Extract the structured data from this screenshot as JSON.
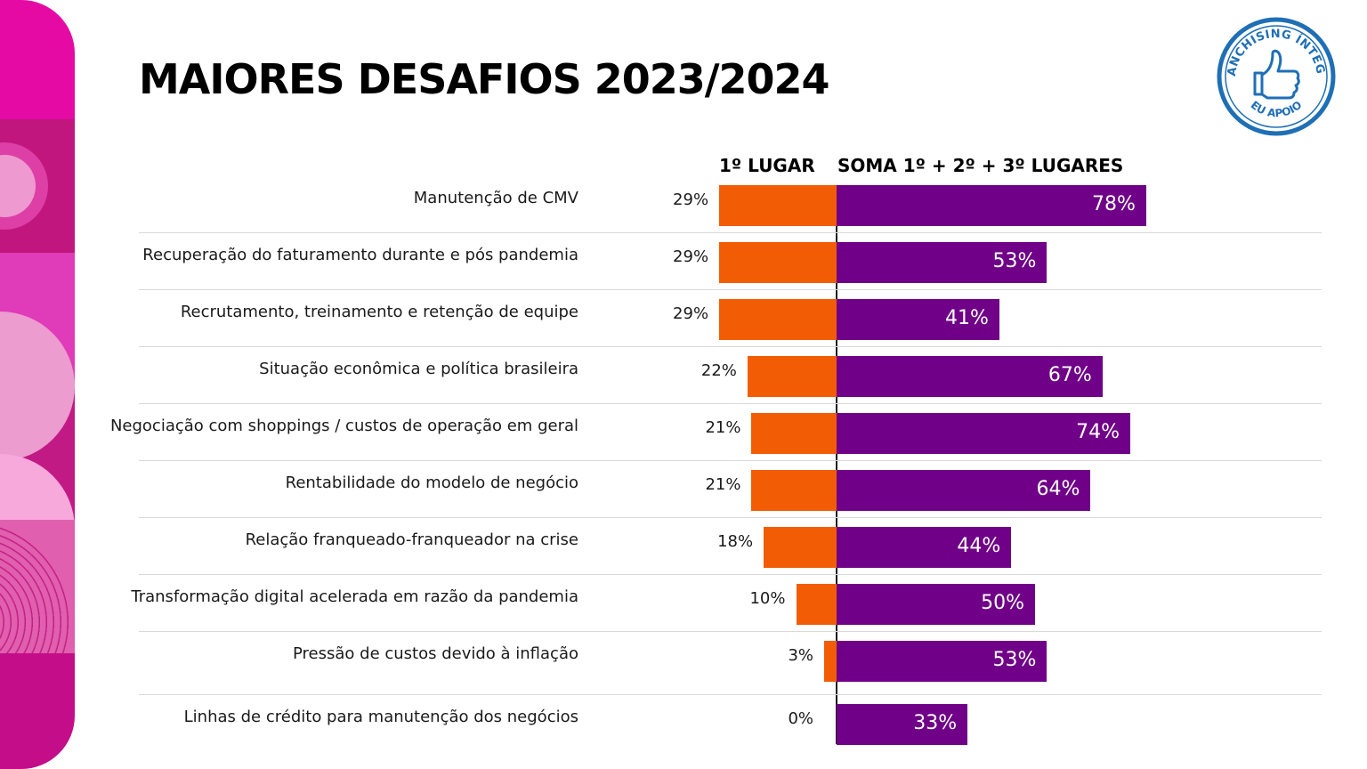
{
  "title": "MAIORES DESAFIOS 2023/2024",
  "seal": {
    "text_top": "FRANCHISING ÍNTEGRO",
    "text_bottom": "EU APOIO",
    "icon": "thumbs-up-icon",
    "color": "#1f6fb5"
  },
  "colors": {
    "first_place": "#f25c05",
    "sum_places": "#6f0087",
    "accent_pink": "#e0119b"
  },
  "chart_data": {
    "type": "bar",
    "orientation": "horizontal-diverging",
    "series": [
      {
        "name": "1º LUGAR",
        "values": [
          29,
          29,
          29,
          22,
          21,
          21,
          18,
          10,
          3,
          0
        ]
      },
      {
        "name": "SOMA 1º + 2º + 3º LUGARES",
        "values": [
          78,
          53,
          41,
          67,
          74,
          64,
          44,
          50,
          53,
          33
        ]
      }
    ],
    "categories": [
      "Manutenção de CMV",
      "Recuperação do faturamento durante e pós pandemia",
      "Recrutamento, treinamento e retenção de equipe",
      "Situação econômica e política brasileira",
      "Negociação com shoppings / custos de operação em geral",
      "Rentabilidade do modelo de negócio",
      "Relação franqueado-franqueador na crise",
      "Transformação digital acelerada em razão da pandemia",
      "Pressão de custos devido à inflação",
      "Linhas de crédito para manutenção dos negócios"
    ],
    "labels_first": [
      "29%",
      "29%",
      "29%",
      "22%",
      "21%",
      "21%",
      "18%",
      "10%",
      "3%",
      "0%"
    ],
    "labels_sum": [
      "78%",
      "53%",
      "41%",
      "67%",
      "74%",
      "64%",
      "44%",
      "50%",
      "53%",
      "33%"
    ],
    "value_unit": "%",
    "grid": false,
    "legend": "top"
  }
}
